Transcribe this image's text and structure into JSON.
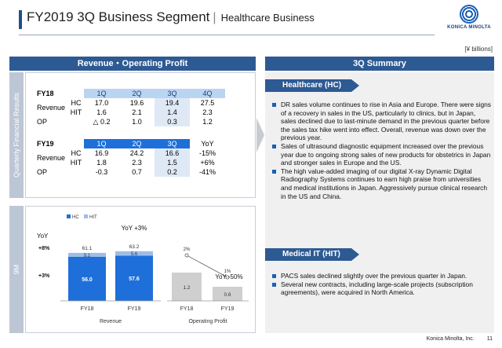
{
  "header": {
    "title": "FY2019 3Q Business Segment",
    "separator": "|",
    "subtitle": "Healthcare Business",
    "logo_text": "KONICA MINOLTA",
    "unit": "[¥ billions]"
  },
  "left": {
    "header": "Revenue・Operating Profit",
    "quarterly_side_label": "Quarterly Financial Results",
    "ninem_side_label": "9M",
    "fy18": {
      "label": "FY18",
      "quarters": [
        "1Q",
        "2Q",
        "3Q",
        "4Q"
      ],
      "revenue_label": "Revenue",
      "op_label": "OP",
      "hc_label": "HC",
      "hit_label": "HIT",
      "hc": [
        "17.0",
        "19.6",
        "19.4",
        "27.5"
      ],
      "hit": [
        "1.6",
        "2.1",
        "1.4",
        "2.3"
      ],
      "op": [
        "△ 0.2",
        "1.0",
        "0.3",
        "1.2"
      ]
    },
    "fy19": {
      "label": "FY19",
      "quarters": [
        "1Q",
        "2Q",
        "3Q"
      ],
      "yoy_label": "YoY",
      "revenue_label": "Revenue",
      "op_label": "OP",
      "hc_label": "HC",
      "hit_label": "HIT",
      "hc": [
        "16.9",
        "24.2",
        "16.6"
      ],
      "hc_yoy": "-15%",
      "hit": [
        "1.8",
        "2.3",
        "1.5"
      ],
      "hit_yoy": "+6%",
      "op": [
        "-0.3",
        "0.7",
        "0.2"
      ],
      "op_yoy": "-41%"
    }
  },
  "chart_data": [
    {
      "type": "bar",
      "stacked": true,
      "categories": [
        "FY18",
        "FY19"
      ],
      "series": [
        {
          "name": "HC",
          "values": [
            56.0,
            57.6
          ],
          "color": "#1e6fd9"
        },
        {
          "name": "HIT",
          "values": [
            5.1,
            5.6
          ],
          "color": "#9fbde6"
        }
      ],
      "totals": [
        61.1,
        63.2
      ],
      "title": "",
      "xlabel": "Revenue",
      "ylabel": "",
      "legend": "top-left",
      "annotation": "YoY +3%",
      "left_labels": {
        "yoy": "YoY",
        "hit": "+8%",
        "hc": "+3%"
      }
    },
    {
      "type": "bar",
      "categories": [
        "FY18",
        "FY19"
      ],
      "values": [
        1.2,
        0.6
      ],
      "value_labels": [
        "1.2",
        "0.6"
      ],
      "margin_labels": [
        "2%",
        "1%"
      ],
      "title": "",
      "xlabel": "Operating Profit",
      "ylabel": "",
      "annotation": "YoY -50%",
      "color": "#cfcfcf"
    }
  ],
  "right": {
    "header": "3Q Summary",
    "hc": {
      "tab": "Healthcare (HC)",
      "bullets": [
        "DR sales volume continues to rise in Asia and Europe. There were signs of a recovery in sales in the US, particularly to clinics, but in Japan, sales declined due to last-minute demand in the previous quarter before the sales tax hike went into effect. Overall, revenue was down over the previous year.",
        "Sales of ultrasound diagnostic equipment increased over the previous year due to ongoing strong sales of new products for obstetrics in Japan and stronger sales in Europe and the US.",
        "The high value-added imaging of our digital X-ray Dynamic Digital Radiography Systems continues to earn high praise from universities and medical institutions in Japan. Aggressively pursue clinical research in the US and China."
      ]
    },
    "hit": {
      "tab": "Medical IT (HIT)",
      "bullets": [
        "PACS sales declined slightly over the previous quarter in Japan.",
        "Several new contracts, including large-scale projects (subscription agreements), were acquired in North America."
      ]
    }
  },
  "footer": {
    "company": "Konica Minolta, Inc.",
    "page": "11"
  }
}
